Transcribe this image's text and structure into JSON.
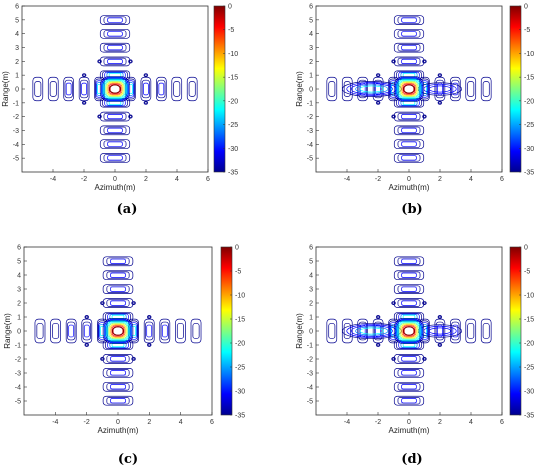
{
  "chart_data": [
    {
      "type": "contour",
      "caption": "(a)",
      "xlabel": "Azimuth(m)",
      "ylabel": "Range(m)",
      "xlim": [
        -6,
        6
      ],
      "ylim": [
        -6,
        6
      ],
      "xticks": [
        "-4",
        "-2",
        "0",
        "2",
        "4",
        "6"
      ],
      "yticks": [
        "-5",
        "-4",
        "-3",
        "-2",
        "-1",
        "0",
        "1",
        "2",
        "3",
        "4",
        "5",
        "6"
      ],
      "colorbar": {
        "range": [
          -35,
          0
        ],
        "ticks": [
          "0",
          "-5",
          "-10",
          "-15",
          "-20",
          "-25",
          "-30",
          "-35"
        ]
      },
      "peak": {
        "x": 0,
        "y": 0,
        "value_db": 0
      },
      "sidelobe_spacing_m": 1.2,
      "azimuth_spread": "symmetric",
      "grid": false
    },
    {
      "type": "contour",
      "caption": "(b)",
      "xlabel": "Azimuth(m)",
      "ylabel": "Range(m)",
      "xlim": [
        -6,
        6
      ],
      "ylim": [
        -6,
        6
      ],
      "xticks": [
        "-4",
        "-2",
        "0",
        "2",
        "4",
        "6"
      ],
      "yticks": [
        "-5",
        "-4",
        "-3",
        "-2",
        "-1",
        "0",
        "1",
        "2",
        "3",
        "4",
        "5",
        "6"
      ],
      "colorbar": {
        "range": [
          -35,
          0
        ],
        "ticks": [
          "0",
          "-5",
          "-10",
          "-15",
          "-20",
          "-25",
          "-30",
          "-35"
        ]
      },
      "peak": {
        "x": 0,
        "y": 0,
        "value_db": 0
      },
      "sidelobe_spacing_m": 1.2,
      "azimuth_spread": "smeared",
      "grid": false
    },
    {
      "type": "contour",
      "caption": "(c)",
      "xlabel": "Azimuth(m)",
      "ylabel": "Range(m)",
      "xlim": [
        -6,
        6
      ],
      "ylim": [
        -6,
        6
      ],
      "xticks": [
        "-4",
        "-2",
        "0",
        "2",
        "4",
        "6"
      ],
      "yticks": [
        "-5",
        "-4",
        "-3",
        "-2",
        "-1",
        "0",
        "1",
        "2",
        "3",
        "4",
        "5",
        "6"
      ],
      "colorbar": {
        "range": [
          -35,
          0
        ],
        "ticks": [
          "0",
          "-5",
          "-10",
          "-15",
          "-20",
          "-25",
          "-30",
          "-35"
        ]
      },
      "peak": {
        "x": 0,
        "y": 0,
        "value_db": 0
      },
      "sidelobe_spacing_m": 1.2,
      "azimuth_spread": "symmetric",
      "grid": false
    },
    {
      "type": "contour",
      "caption": "(d)",
      "xlabel": "Azimuth(m)",
      "ylabel": "Range(m)",
      "xlim": [
        -6,
        6
      ],
      "ylim": [
        -6,
        6
      ],
      "xticks": [
        "-4",
        "-2",
        "0",
        "2",
        "4",
        "6"
      ],
      "yticks": [
        "-5",
        "-4",
        "-3",
        "-2",
        "-1",
        "0",
        "1",
        "2",
        "3",
        "4",
        "5",
        "6"
      ],
      "colorbar": {
        "range": [
          -35,
          0
        ],
        "ticks": [
          "0",
          "-5",
          "-10",
          "-15",
          "-20",
          "-25",
          "-30",
          "-35"
        ]
      },
      "peak": {
        "x": 0,
        "y": 0,
        "value_db": 0
      },
      "sidelobe_spacing_m": 1.2,
      "azimuth_spread": "smeared",
      "grid": false
    }
  ],
  "colors": {
    "colormap": [
      "#00008f",
      "#0000ff",
      "#0080ff",
      "#00ffff",
      "#80ff80",
      "#ffff00",
      "#ff8000",
      "#ff0000",
      "#800000"
    ],
    "axis": "#333333",
    "background": "#ffffff"
  }
}
